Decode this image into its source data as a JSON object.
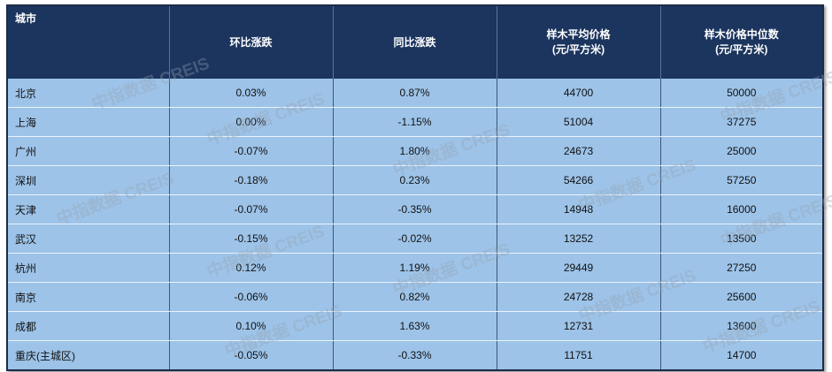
{
  "table": {
    "header": [
      [
        "城市"
      ],
      [
        "环比涨跌"
      ],
      [
        "同比涨跌"
      ],
      [
        "样木平均价格",
        "(元/平方米)"
      ],
      [
        "样木价格中位数",
        "(元/平方米)"
      ]
    ],
    "rows": [
      [
        "北京",
        "0.03%",
        "0.87%",
        44700,
        50000
      ],
      [
        "上海",
        "0.00%",
        "-1.15%",
        51004,
        37275
      ],
      [
        "广州",
        "-0.07%",
        "1.80%",
        24673,
        25000
      ],
      [
        "深圳",
        "-0.18%",
        "0.23%",
        54266,
        57250
      ],
      [
        "天津",
        "-0.07%",
        "-0.35%",
        14948,
        16000
      ],
      [
        "武汉",
        "-0.15%",
        "-0.02%",
        13252,
        13500
      ],
      [
        "杭州",
        "0.12%",
        "1.19%",
        29449,
        27250
      ],
      [
        "南京",
        "-0.06%",
        "0.82%",
        24728,
        25600
      ],
      [
        "成都",
        "0.10%",
        "1.63%",
        12731,
        13600
      ],
      [
        "重庆(主城区)",
        "-0.05%",
        "-0.33%",
        11751,
        14700
      ]
    ]
  },
  "watermark": "中指数据 CREIS"
}
